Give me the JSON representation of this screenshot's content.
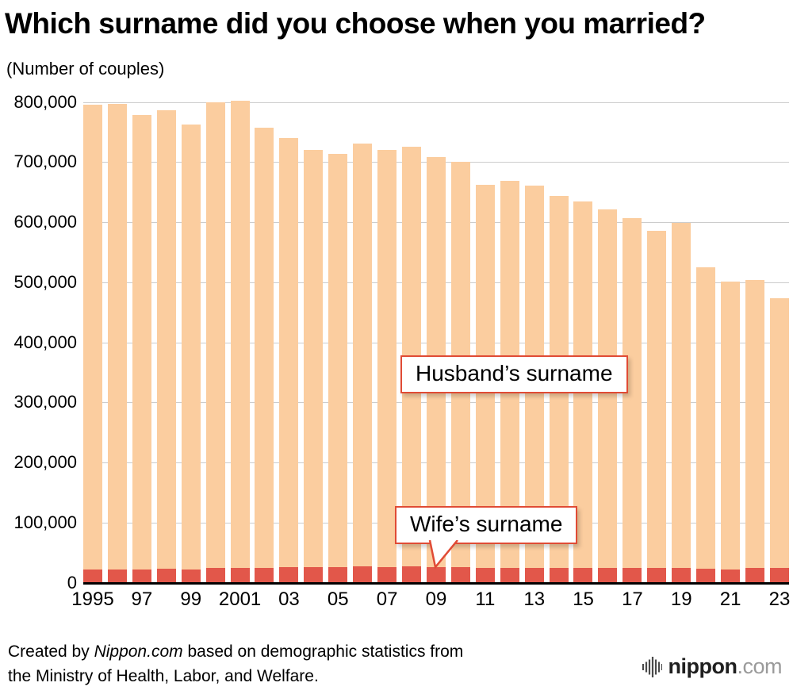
{
  "title": "Which surname did you choose when you married?",
  "subtitle": "(Number of couples)",
  "chart_data": {
    "type": "bar",
    "stacked": true,
    "title": "Which surname did you choose when you married?",
    "ylabel": "(Number of couples)",
    "ylim": [
      0,
      800000
    ],
    "ytick_step": 100000,
    "grid": "horizontal",
    "categories": [
      1995,
      1996,
      1997,
      1998,
      1999,
      2000,
      2001,
      2002,
      2003,
      2004,
      2005,
      2006,
      2007,
      2008,
      2009,
      2010,
      2011,
      2012,
      2013,
      2014,
      2015,
      2016,
      2017,
      2018,
      2019,
      2020,
      2021,
      2022,
      2023
    ],
    "x_tick_labels": [
      "1995",
      "",
      "97",
      "",
      "99",
      "",
      "2001",
      "",
      "03",
      "",
      "05",
      "",
      "07",
      "",
      "09",
      "",
      "11",
      "",
      "13",
      "",
      "15",
      "",
      "17",
      "",
      "19",
      "",
      "21",
      "",
      "23"
    ],
    "series": [
      {
        "name": "Wife’s surname",
        "color": "#e2574a",
        "values": [
          22000,
          22000,
          22000,
          23000,
          22000,
          25000,
          25000,
          25000,
          26000,
          26000,
          26000,
          27000,
          26000,
          27000,
          26000,
          26000,
          24000,
          25000,
          25000,
          25000,
          25000,
          25000,
          25000,
          24000,
          24000,
          23000,
          22000,
          24000,
          25000
        ]
      },
      {
        "name": "Husband’s surname",
        "color": "#fbcd9f",
        "values": [
          773000,
          775000,
          756000,
          763000,
          741000,
          775000,
          777000,
          732000,
          714000,
          694000,
          688000,
          704000,
          694000,
          699000,
          682000,
          674000,
          638000,
          644000,
          636000,
          619000,
          610000,
          596000,
          582000,
          562000,
          575000,
          502000,
          479000,
          480000,
          449000
        ]
      }
    ],
    "annotations": {
      "husband": "Husband’s surname",
      "wife": "Wife’s surname"
    }
  },
  "footer": {
    "prefix": "Created by ",
    "source": "Nippon.com",
    "suffix": " based on demographic statistics from",
    "line2": "the Ministry of Health, Labor, and Welfare.",
    "logo_text": "nippon",
    "logo_suffix": ".com"
  }
}
